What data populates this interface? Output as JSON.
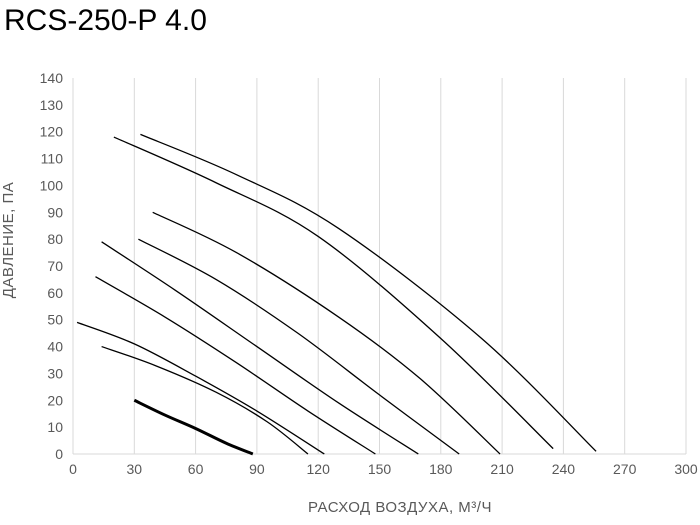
{
  "chart_data": {
    "type": "line",
    "title": "RCS-250-P 4.0",
    "xlabel": "РАСХОД ВОЗДУХА, М³/Ч",
    "ylabel": "ДАВЛЕНИЕ, ПА",
    "xlim": [
      0,
      300
    ],
    "ylim": [
      0,
      140
    ],
    "x_ticks": [
      0,
      30,
      60,
      90,
      120,
      150,
      180,
      210,
      240,
      270,
      300
    ],
    "y_ticks": [
      0,
      10,
      20,
      30,
      40,
      50,
      60,
      70,
      80,
      90,
      100,
      110,
      120,
      130,
      140
    ],
    "grid": "vertical",
    "series": [
      {
        "name": "curve-1",
        "bold": true,
        "x": [
          30,
          45,
          60,
          75,
          88
        ],
        "y": [
          20,
          14.5,
          9.5,
          4,
          0
        ]
      },
      {
        "name": "curve-2",
        "bold": false,
        "x": [
          14,
          40,
          70,
          95,
          115
        ],
        "y": [
          40,
          33,
          23,
          12,
          0
        ]
      },
      {
        "name": "curve-3",
        "bold": false,
        "x": [
          2,
          30,
          60,
          90,
          123
        ],
        "y": [
          49,
          41,
          29,
          16,
          0
        ]
      },
      {
        "name": "curve-4",
        "bold": false,
        "x": [
          11,
          45,
          80,
          115,
          148
        ],
        "y": [
          66,
          51,
          34,
          16,
          0
        ]
      },
      {
        "name": "curve-5",
        "bold": false,
        "x": [
          14,
          50,
          90,
          130,
          169
        ],
        "y": [
          79,
          61,
          40,
          19,
          0
        ]
      },
      {
        "name": "curve-6",
        "bold": false,
        "x": [
          32,
          70,
          110,
          150,
          189
        ],
        "y": [
          80,
          65,
          45,
          22,
          0
        ]
      },
      {
        "name": "curve-7",
        "bold": false,
        "x": [
          39,
          80,
          130,
          170,
          209
        ],
        "y": [
          90,
          75,
          51,
          28,
          0
        ]
      },
      {
        "name": "curve-8",
        "bold": false,
        "x": [
          20,
          70,
          120,
          180,
          235
        ],
        "y": [
          118,
          101,
          81,
          43,
          2
        ]
      },
      {
        "name": "curve-9",
        "bold": false,
        "x": [
          33,
          80,
          130,
          200,
          256
        ],
        "y": [
          119,
          104,
          84,
          43,
          1
        ]
      }
    ]
  }
}
